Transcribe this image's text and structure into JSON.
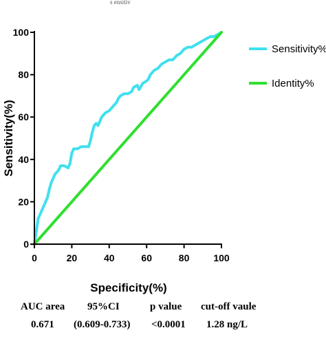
{
  "top_caption": "s  ensitiv",
  "chart_data": {
    "type": "line",
    "xlabel": "Specificity(%)",
    "ylabel": "Sensitivity(%)",
    "xlim": [
      0,
      100
    ],
    "ylim": [
      0,
      100
    ],
    "x_ticks": [
      "0",
      "20",
      "40",
      "60",
      "80",
      "100"
    ],
    "y_ticks": [
      "0",
      "20",
      "40",
      "60",
      "80",
      "100"
    ],
    "grid": false,
    "legend_position": "right",
    "series": [
      {
        "name": "Sensitivity%",
        "color": "#40e0ee",
        "points": [
          [
            0,
            0
          ],
          [
            0.5,
            3
          ],
          [
            1,
            6
          ],
          [
            1.5,
            9
          ],
          [
            2,
            12
          ],
          [
            3,
            14
          ],
          [
            4,
            16
          ],
          [
            5,
            18
          ],
          [
            6,
            20
          ],
          [
            7,
            22
          ],
          [
            8,
            26
          ],
          [
            9,
            29
          ],
          [
            10,
            31
          ],
          [
            11,
            33
          ],
          [
            12,
            34
          ],
          [
            13,
            35
          ],
          [
            14,
            37
          ],
          [
            16,
            37
          ],
          [
            18,
            36
          ],
          [
            19,
            38
          ],
          [
            20,
            43
          ],
          [
            21,
            45
          ],
          [
            23,
            45
          ],
          [
            25,
            46
          ],
          [
            27,
            46
          ],
          [
            29,
            46
          ],
          [
            30,
            49
          ],
          [
            31,
            53
          ],
          [
            32,
            56
          ],
          [
            33,
            57
          ],
          [
            34,
            56
          ],
          [
            35,
            58
          ],
          [
            36,
            60
          ],
          [
            37,
            61
          ],
          [
            38,
            62
          ],
          [
            40,
            63
          ],
          [
            41,
            64
          ],
          [
            42,
            65
          ],
          [
            43,
            66
          ],
          [
            44,
            67
          ],
          [
            45,
            69
          ],
          [
            46,
            70
          ],
          [
            48,
            71
          ],
          [
            50,
            71
          ],
          [
            52,
            72
          ],
          [
            53,
            74
          ],
          [
            55,
            75
          ],
          [
            56,
            73
          ],
          [
            58,
            76
          ],
          [
            60,
            77
          ],
          [
            61,
            78
          ],
          [
            62,
            80
          ],
          [
            64,
            82
          ],
          [
            66,
            83
          ],
          [
            68,
            85
          ],
          [
            70,
            86
          ],
          [
            72,
            87
          ],
          [
            74,
            87
          ],
          [
            76,
            89
          ],
          [
            78,
            90
          ],
          [
            80,
            92
          ],
          [
            82,
            93
          ],
          [
            84,
            93
          ],
          [
            86,
            94
          ],
          [
            88,
            95
          ],
          [
            90,
            96
          ],
          [
            92,
            97
          ],
          [
            94,
            98
          ],
          [
            96,
            98
          ],
          [
            98,
            99
          ],
          [
            100,
            100
          ]
        ]
      },
      {
        "name": "Identity%",
        "color": "#2ee02e",
        "points": [
          [
            0,
            0
          ],
          [
            100,
            100
          ]
        ]
      }
    ]
  },
  "table": {
    "headers": [
      "AUC area",
      "95%CI",
      "p value",
      "cut-off vaule"
    ],
    "values": [
      "0.671",
      "(0.609-0.733)",
      "<0.0001",
      "1.28 ng/L"
    ]
  }
}
